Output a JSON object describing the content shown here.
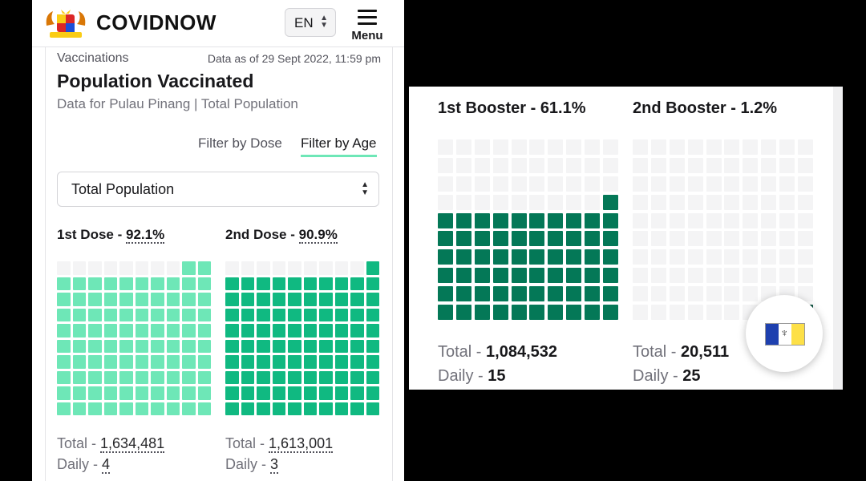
{
  "header": {
    "brand": "COVIDNOW",
    "lang": "EN",
    "menu_label": "Menu"
  },
  "card": {
    "section": "Vaccinations",
    "as_of": "Data as of 29 Sept 2022, 11:59 pm",
    "title": "Population Vaccinated",
    "subtitle": "Data for Pulau Pinang | Total Population",
    "filter_dose": "Filter by Dose",
    "filter_age": "Filter by Age",
    "select_value": "Total Population"
  },
  "doses": [
    {
      "name": "1st Dose",
      "sep": " - ",
      "percent": "92.1%",
      "pct_value": 92.1,
      "total_label": "Total - ",
      "total": "1,634,481",
      "daily_label": "Daily - ",
      "daily": "4",
      "color": "#6ee7b7"
    },
    {
      "name": "2nd Dose",
      "sep": " - ",
      "percent": "90.9%",
      "pct_value": 90.9,
      "total_label": "Total - ",
      "total": "1,613,001",
      "daily_label": "Daily - ",
      "daily": "3",
      "color": "#10b981"
    },
    {
      "name": "1st Booster",
      "sep": " - ",
      "percent": "61.1%",
      "pct_value": 61.1,
      "total_label": "Total - ",
      "total": "1,084,532",
      "daily_label": "Daily - ",
      "daily": "15",
      "color": "#047857"
    },
    {
      "name": "2nd Booster",
      "sep": " - ",
      "percent": "1.2%",
      "pct_value": 1.2,
      "total_label": "Total - ",
      "total": "20,511",
      "daily_label": "Daily - ",
      "daily": "25",
      "color": "#064e3b"
    }
  ],
  "colors": {
    "empty_cell": "#f4f4f5",
    "tab_underline": "#6ee7b7"
  },
  "icons": {
    "menu": "hamburger-icon",
    "flag": "pulau-pinang-flag-icon",
    "logo": "malaysia-coat-of-arms-logo"
  }
}
